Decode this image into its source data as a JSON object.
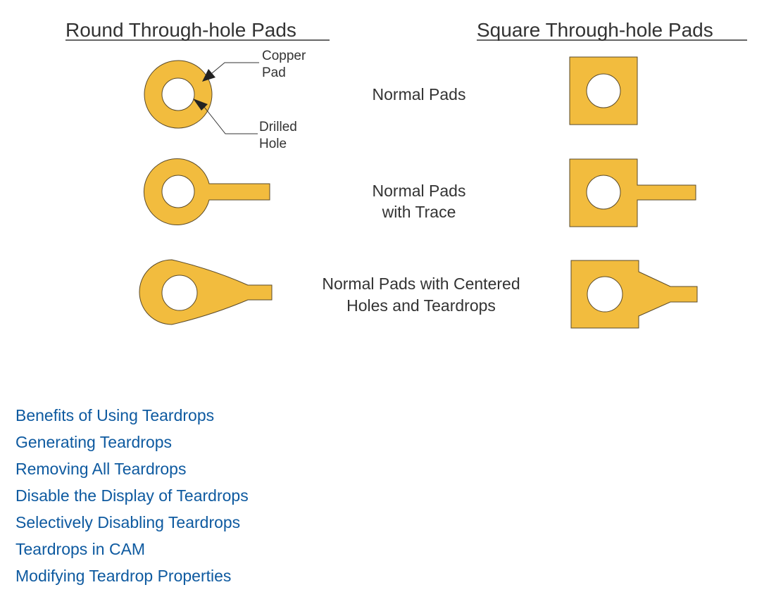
{
  "headings": {
    "round": "Round Through-hole Pads",
    "square": "Square Through-hole Pads"
  },
  "callouts": {
    "copper_line1": "Copper",
    "copper_line2": "Pad",
    "drilled_line1": "Drilled",
    "drilled_line2": "Hole"
  },
  "rows": [
    {
      "line1": "Normal Pads",
      "line2": ""
    },
    {
      "line1": "Normal Pads",
      "line2": "with Trace"
    },
    {
      "line1": "Normal Pads with Centered",
      "line2": "Holes and Teardrops"
    }
  ],
  "links": [
    "Benefits of Using Teardrops",
    "Generating Teardrops",
    "Removing All Teardrops",
    "Disable the Display of Teardrops",
    "Selectively Disabling Teardrops",
    "Teardrops in CAM",
    "Modifying Teardrop Properties"
  ],
  "colors": {
    "copper": "#f2bc3e",
    "link": "#0e5aa0",
    "text": "#333333"
  }
}
